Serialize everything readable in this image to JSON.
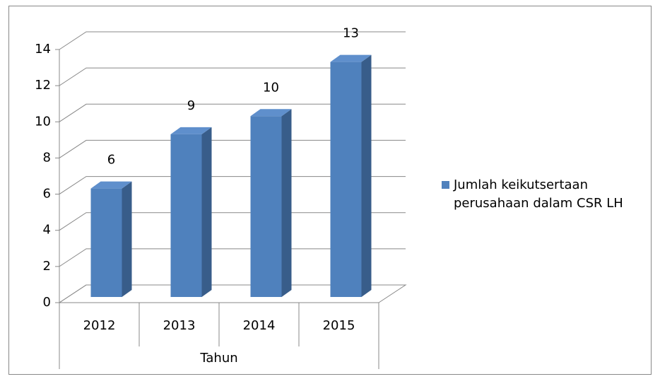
{
  "chart_data": {
    "type": "bar3d",
    "x_label": "Tahun",
    "categories": [
      "2012",
      "2013",
      "2014",
      "2015"
    ],
    "series": [
      {
        "name": "Jumlah keikutsertaan perusahaan dalam CSR LH",
        "color": "#4f81bd",
        "values": [
          6,
          9,
          10,
          13
        ]
      }
    ],
    "ylim": [
      0,
      14
    ],
    "yticks": [
      0,
      2,
      4,
      6,
      8,
      10,
      12,
      14
    ],
    "grid": true,
    "legend": "right"
  }
}
